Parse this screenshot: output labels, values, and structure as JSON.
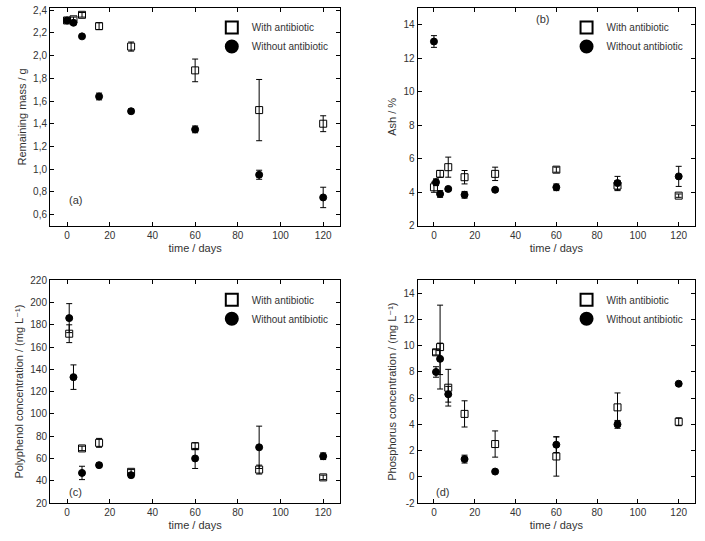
{
  "chart_data": [
    {
      "type": "scatter",
      "annotation": "(a)",
      "x_label": "time / days",
      "y_label": "Remaining mass / g",
      "xlim": [
        -8,
        128
      ],
      "xticks": [
        0,
        20,
        40,
        60,
        80,
        100,
        120
      ],
      "ylim": [
        0.5,
        2.42
      ],
      "yticks": [
        {
          "value": 0.6,
          "label": "0,6"
        },
        {
          "value": 0.8,
          "label": "0,8"
        },
        {
          "value": 1.0,
          "label": "1,0"
        },
        {
          "value": 1.2,
          "label": "1,2"
        },
        {
          "value": 1.4,
          "label": "1,4"
        },
        {
          "value": 1.6,
          "label": "1,6"
        },
        {
          "value": 1.8,
          "label": "1,8"
        },
        {
          "value": 2.0,
          "label": "2,0"
        },
        {
          "value": 2.2,
          "label": "2,2"
        },
        {
          "value": 2.4,
          "label": "2,4"
        }
      ],
      "legend": "upper right",
      "series": [
        {
          "name": "With antibiotic",
          "color": "#000000",
          "marker": "square-open",
          "x": [
            0,
            3,
            7,
            15,
            30,
            60,
            90,
            120
          ],
          "values": [
            2.31,
            2.32,
            2.36,
            2.26,
            2.08,
            1.87,
            1.52,
            1.4
          ],
          "errors": [
            0.02,
            0.02,
            0.02,
            0.03,
            0.04,
            0.1,
            0.27,
            0.07
          ]
        },
        {
          "name": "Without antibiotic",
          "color": "#000000",
          "marker": "circle",
          "x": [
            0,
            3,
            7,
            15,
            30,
            60,
            90,
            120
          ],
          "values": [
            2.31,
            2.29,
            2.17,
            1.64,
            1.51,
            1.35,
            0.95,
            0.75
          ],
          "errors": [
            0.01,
            0.01,
            0.01,
            0.03,
            0.02,
            0.03,
            0.04,
            0.09
          ]
        }
      ]
    },
    {
      "type": "scatter",
      "annotation": "(b)",
      "x_label": "time / days",
      "y_label": "Ash / %",
      "xlim": [
        -8,
        128
      ],
      "xticks": [
        0,
        20,
        40,
        60,
        80,
        100,
        120
      ],
      "ylim": [
        2,
        15
      ],
      "yticks": [
        2,
        4,
        6,
        8,
        10,
        12,
        14
      ],
      "legend": "upper right",
      "series": [
        {
          "name": "With antibiotic",
          "color": "#000000",
          "marker": "square-open",
          "x": [
            0,
            3,
            7,
            15,
            30,
            60,
            90,
            120
          ],
          "values": [
            4.3,
            5.1,
            5.5,
            4.9,
            5.1,
            5.35,
            4.4,
            3.8
          ],
          "errors": [
            0.3,
            0.2,
            0.6,
            0.4,
            0.4,
            0.15,
            0.3,
            0.1
          ]
        },
        {
          "name": "Without antibiotic",
          "color": "#000000",
          "marker": "circle",
          "x": [
            0,
            1,
            3,
            7,
            15,
            30,
            60,
            90,
            120
          ],
          "values": [
            13.0,
            4.6,
            3.9,
            4.2,
            3.85,
            4.15,
            4.3,
            4.55,
            4.95
          ],
          "errors": [
            0.35,
            0.2,
            0.2,
            0.1,
            0.2,
            0.1,
            0.2,
            0.4,
            0.6
          ]
        }
      ]
    },
    {
      "type": "scatter",
      "annotation": "(c)",
      "x_label": "time / days",
      "y_label": "Polyphenol concentration / (mg L⁻¹)",
      "xlim": [
        -8,
        128
      ],
      "xticks": [
        0,
        20,
        40,
        60,
        80,
        100,
        120
      ],
      "ylim": [
        20,
        220
      ],
      "yticks": [
        20,
        40,
        60,
        80,
        100,
        120,
        140,
        160,
        180,
        200,
        220
      ],
      "legend": "upper right",
      "series": [
        {
          "name": "With antibiotic",
          "color": "#000000",
          "marker": "square-open",
          "x": [
            1,
            7,
            15,
            30,
            60,
            90,
            120
          ],
          "values": [
            172,
            69,
            74,
            48,
            71,
            50,
            43
          ],
          "errors": [
            8,
            2,
            4,
            2,
            3,
            4,
            2
          ]
        },
        {
          "name": "Without antibiotic",
          "color": "#000000",
          "marker": "circle",
          "x": [
            1,
            3,
            7,
            15,
            30,
            60,
            90,
            120
          ],
          "values": [
            186,
            133,
            47,
            54,
            45,
            60,
            70,
            62
          ],
          "errors": [
            13,
            11,
            6,
            2,
            2,
            9,
            19,
            3
          ]
        }
      ]
    },
    {
      "type": "scatter",
      "annotation": "(d)",
      "x_label": "time / days",
      "y_label": "Phosphorus concentration / (mg L⁻¹)",
      "xlim": [
        -8,
        128
      ],
      "xticks": [
        0,
        20,
        40,
        60,
        80,
        100,
        120
      ],
      "ylim": [
        -2,
        15
      ],
      "yticks": [
        -2,
        0,
        2,
        4,
        6,
        8,
        10,
        12,
        14
      ],
      "legend": "upper right",
      "series": [
        {
          "name": "With antibiotic",
          "color": "#000000",
          "marker": "square-open",
          "x": [
            1,
            3,
            7,
            15,
            30,
            60,
            90,
            120
          ],
          "values": [
            9.5,
            9.9,
            6.8,
            4.8,
            2.5,
            1.55,
            5.3,
            4.2
          ],
          "errors": [
            0.2,
            3.2,
            1.4,
            1.0,
            1.0,
            1.5,
            1.1,
            0.3
          ]
        },
        {
          "name": "Without antibiotic",
          "color": "#000000",
          "marker": "circle",
          "x": [
            1,
            3,
            7,
            15,
            30,
            60,
            90,
            120
          ],
          "values": [
            8.0,
            9.0,
            6.3,
            1.35,
            0.4,
            2.45,
            4.0,
            7.1
          ],
          "errors": [
            0.4,
            1.2,
            0.6,
            0.3,
            0.1,
            0.6,
            0.3,
            0.1
          ]
        }
      ]
    }
  ]
}
